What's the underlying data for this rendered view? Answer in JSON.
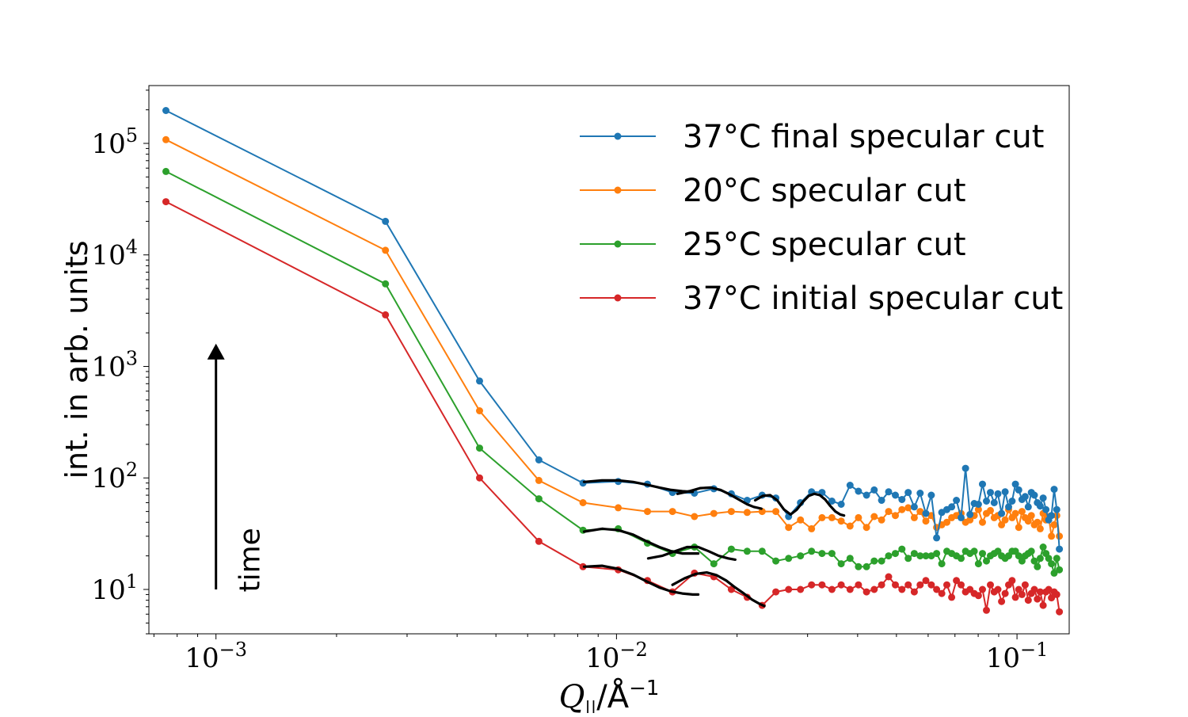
{
  "chart_data": {
    "type": "line",
    "xscale": "log",
    "yscale": "log",
    "xlim": [
      0.00068,
      0.135
    ],
    "ylim": [
      4.0,
      330000
    ],
    "xlabel_parts": {
      "q": "Q",
      "sub": "||",
      "unit": "/Å",
      "exp": "−1"
    },
    "ylabel": "int. in arb. units",
    "x_ticks": [
      {
        "base": "10",
        "exp": "−3",
        "value": 0.001
      },
      {
        "base": "10",
        "exp": "−2",
        "value": 0.01
      },
      {
        "base": "10",
        "exp": "−1",
        "value": 0.1
      }
    ],
    "y_ticks": [
      {
        "base": "10",
        "exp": "1",
        "value": 10
      },
      {
        "base": "10",
        "exp": "2",
        "value": 100
      },
      {
        "base": "10",
        "exp": "3",
        "value": 1000
      },
      {
        "base": "10",
        "exp": "4",
        "value": 10000
      },
      {
        "base": "10",
        "exp": "5",
        "value": 100000
      }
    ],
    "annotation": {
      "text": "time",
      "arrow_from_y": 10,
      "arrow_to_y": 1600,
      "x": 0.001
    },
    "legend_position": "upper right",
    "series": [
      {
        "name": "37°C final specular cut",
        "color": "#1f77b4",
        "x": [
          0.00075,
          0.00265,
          0.00455,
          0.0064,
          0.00825,
          0.0101,
          0.01195,
          0.0138,
          0.01565,
          0.0175,
          0.01935,
          0.0212,
          0.0231,
          0.025,
          0.0269,
          0.0288,
          0.0307,
          0.0326,
          0.0345,
          0.0364,
          0.0383,
          0.0402,
          0.0421,
          0.044,
          0.0459,
          0.0478,
          0.0497,
          0.0516,
          0.0535,
          0.0554,
          0.0573,
          0.0592,
          0.0611,
          0.063,
          0.0649,
          0.0668,
          0.0687,
          0.0706,
          0.0725,
          0.0744,
          0.0763,
          0.0782,
          0.0801,
          0.082,
          0.0839,
          0.0858,
          0.0877,
          0.0896,
          0.0915,
          0.0934,
          0.0953,
          0.0972,
          0.0991,
          0.101,
          0.1029,
          0.1048,
          0.1067,
          0.1086,
          0.1105,
          0.1124,
          0.1143,
          0.1162,
          0.1181,
          0.12,
          0.1219,
          0.1238,
          0.1257,
          0.1276
        ],
        "y": [
          197000,
          20000,
          740,
          145,
          90,
          93,
          88,
          74,
          73,
          80,
          72,
          63,
          70,
          66,
          45,
          60,
          75,
          74,
          62,
          58,
          86,
          76,
          70,
          78,
          63,
          75,
          70,
          64,
          74,
          55,
          73,
          48,
          70,
          29,
          49,
          52,
          55,
          63,
          44,
          122,
          47,
          59,
          58,
          88,
          62,
          74,
          60,
          72,
          48,
          75,
          55,
          62,
          88,
          78,
          64,
          68,
          55,
          74,
          70,
          60,
          56,
          66,
          52,
          42,
          46,
          79,
          52,
          23
        ]
      },
      {
        "name": "20°C specular cut",
        "color": "#ff7f0e",
        "x": [
          0.00075,
          0.00265,
          0.00455,
          0.0064,
          0.00825,
          0.0101,
          0.01195,
          0.0138,
          0.01565,
          0.0175,
          0.01935,
          0.0212,
          0.0231,
          0.025,
          0.0269,
          0.0288,
          0.0307,
          0.0326,
          0.0345,
          0.0364,
          0.0383,
          0.0402,
          0.0421,
          0.044,
          0.0459,
          0.0478,
          0.0497,
          0.0516,
          0.0535,
          0.0554,
          0.0573,
          0.0592,
          0.0611,
          0.063,
          0.0649,
          0.0668,
          0.0687,
          0.0706,
          0.0725,
          0.0744,
          0.0763,
          0.0782,
          0.0801,
          0.082,
          0.0839,
          0.0858,
          0.0877,
          0.0896,
          0.0915,
          0.0934,
          0.0953,
          0.0972,
          0.0991,
          0.101,
          0.1029,
          0.1048,
          0.1067,
          0.1086,
          0.1105,
          0.1124,
          0.1143,
          0.1162,
          0.1181,
          0.12,
          0.1219,
          0.1238,
          0.1257,
          0.1276
        ],
        "y": [
          108000,
          11000,
          400,
          95,
          60,
          54,
          50,
          50,
          45,
          48,
          50,
          49,
          50,
          50,
          36,
          42,
          35,
          44,
          44,
          41,
          37,
          44,
          36,
          45,
          42,
          50,
          46,
          52,
          54,
          44,
          50,
          41,
          46,
          36,
          38,
          40,
          44,
          46,
          48,
          40,
          42,
          46,
          52,
          40,
          48,
          51,
          44,
          46,
          38,
          42,
          52,
          44,
          48,
          36,
          50,
          44,
          41,
          46,
          38,
          40,
          35,
          48,
          42,
          45,
          30,
          38,
          46,
          30
        ]
      },
      {
        "name": "25°C specular cut",
        "color": "#2ca02c",
        "x": [
          0.00075,
          0.00265,
          0.00455,
          0.0064,
          0.00825,
          0.0101,
          0.01195,
          0.0138,
          0.01565,
          0.0175,
          0.01935,
          0.0212,
          0.0231,
          0.025,
          0.0269,
          0.0288,
          0.0307,
          0.0326,
          0.0345,
          0.0364,
          0.0383,
          0.0402,
          0.0421,
          0.044,
          0.0459,
          0.0478,
          0.0497,
          0.0516,
          0.0535,
          0.0554,
          0.0573,
          0.0592,
          0.0611,
          0.063,
          0.0649,
          0.0668,
          0.0687,
          0.0706,
          0.0725,
          0.0744,
          0.0763,
          0.0782,
          0.0801,
          0.082,
          0.0839,
          0.0858,
          0.0877,
          0.0896,
          0.0915,
          0.0934,
          0.0953,
          0.0972,
          0.0991,
          0.101,
          0.1029,
          0.1048,
          0.1067,
          0.1086,
          0.1105,
          0.1124,
          0.1143,
          0.1162,
          0.1181,
          0.12,
          0.1219,
          0.1238,
          0.1257,
          0.1276
        ],
        "y": [
          56000,
          5500,
          185,
          65,
          34,
          35,
          26,
          21,
          24,
          17,
          23,
          22,
          22,
          18,
          19,
          20,
          22,
          21,
          21,
          17,
          19,
          16,
          16,
          18,
          18,
          20,
          21,
          23,
          19,
          21,
          20,
          20,
          20,
          21,
          17,
          22,
          21,
          20,
          19,
          22,
          21,
          22,
          17,
          21,
          18,
          20,
          21,
          22,
          20,
          19,
          20,
          22,
          22,
          20,
          18,
          20,
          21,
          22,
          18,
          16,
          19,
          24,
          21,
          19,
          17,
          14,
          19,
          15
        ]
      },
      {
        "name": "37°C initial specular cut",
        "color": "#d62728",
        "x": [
          0.00075,
          0.00265,
          0.00455,
          0.0064,
          0.00825,
          0.0101,
          0.01195,
          0.0138,
          0.01565,
          0.0175,
          0.01935,
          0.0212,
          0.0231,
          0.025,
          0.0269,
          0.0288,
          0.0307,
          0.0326,
          0.0345,
          0.0364,
          0.0383,
          0.0402,
          0.0421,
          0.044,
          0.0459,
          0.0478,
          0.0497,
          0.0516,
          0.0535,
          0.0554,
          0.0573,
          0.0592,
          0.0611,
          0.063,
          0.0649,
          0.0668,
          0.0687,
          0.0706,
          0.0725,
          0.0744,
          0.0763,
          0.0782,
          0.0801,
          0.082,
          0.0839,
          0.0858,
          0.0877,
          0.0896,
          0.0915,
          0.0934,
          0.0953,
          0.0972,
          0.0991,
          0.101,
          0.1029,
          0.1048,
          0.1067,
          0.1086,
          0.1105,
          0.1124,
          0.1143,
          0.1162,
          0.1181,
          0.12,
          0.1219,
          0.1238,
          0.1257,
          0.1276
        ],
        "y": [
          30000,
          2900,
          100,
          27,
          16,
          15,
          12,
          9.5,
          14,
          13,
          10,
          8.5,
          7.2,
          9.5,
          10,
          10,
          11,
          11,
          10,
          11,
          10,
          11,
          9.5,
          10,
          11,
          13,
          11,
          10,
          11,
          9.5,
          11,
          12,
          11,
          10,
          9.2,
          11,
          8.5,
          12,
          11,
          9.5,
          10,
          9.2,
          8.8,
          10,
          6.5,
          11,
          9.5,
          10,
          7.8,
          9.2,
          11,
          12,
          8.5,
          10,
          9,
          11,
          8,
          9.2,
          10,
          8.2,
          9.5,
          7.2,
          9.5,
          10,
          8.4,
          9.5,
          9,
          6.3
        ]
      }
    ],
    "fit_curves": [
      {
        "series": 0,
        "x": [
          0.0083,
          0.0092,
          0.0101,
          0.011,
          0.0119,
          0.0128,
          0.0137,
          0.0146,
          0.0155
        ],
        "y": [
          92,
          95,
          95,
          92,
          87,
          82,
          78,
          76,
          75
        ]
      },
      {
        "series": 0,
        "x": [
          0.0142,
          0.0152,
          0.0162,
          0.0172,
          0.0182,
          0.0192,
          0.0202,
          0.0212,
          0.022,
          0.023
        ],
        "y": [
          72,
          76,
          81,
          82,
          78,
          71,
          64,
          58,
          55,
          53
        ]
      },
      {
        "series": 0,
        "x": [
          0.0222,
          0.0232,
          0.0242,
          0.0252,
          0.0262,
          0.0272,
          0.0282,
          0.0292,
          0.0302,
          0.0312,
          0.0322,
          0.0332,
          0.0342,
          0.0352,
          0.0362,
          0.037
        ],
        "y": [
          63,
          69,
          70,
          63,
          52,
          47,
          52,
          61,
          69,
          72,
          70,
          64,
          56,
          50,
          47,
          46
        ]
      },
      {
        "series": 2,
        "x": [
          0.0083,
          0.0092,
          0.0101,
          0.011,
          0.0119,
          0.0128,
          0.0137,
          0.0146,
          0.0155,
          0.016
        ],
        "y": [
          33,
          35,
          34,
          31,
          27,
          24,
          22,
          21,
          21,
          21
        ]
      },
      {
        "series": 2,
        "x": [
          0.012,
          0.013,
          0.014,
          0.015,
          0.016,
          0.017,
          0.018,
          0.019,
          0.0198
        ],
        "y": [
          19,
          20,
          22,
          24,
          24,
          22,
          20,
          19,
          18.5
        ]
      },
      {
        "series": 3,
        "x": [
          0.0083,
          0.0092,
          0.0101,
          0.011,
          0.0119,
          0.0128,
          0.0137,
          0.0146,
          0.0155,
          0.016
        ],
        "y": [
          16,
          16.3,
          15.3,
          13.6,
          11.8,
          10.4,
          9.6,
          9.2,
          9,
          9
        ]
      },
      {
        "series": 3,
        "x": [
          0.0138,
          0.0148,
          0.0158,
          0.0168,
          0.0178,
          0.0188,
          0.0198,
          0.0208,
          0.0218,
          0.0228,
          0.0234
        ],
        "y": [
          11,
          12.6,
          13.8,
          14.2,
          13.4,
          12,
          10.4,
          9.2,
          8.1,
          7.4,
          7.1
        ]
      }
    ]
  }
}
